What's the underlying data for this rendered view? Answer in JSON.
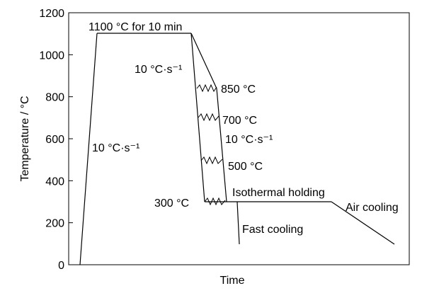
{
  "chart_data": {
    "type": "diagram",
    "xlabel": "Time",
    "ylabel": "Temperature / °C",
    "ylim": [
      0,
      1200
    ],
    "y_ticks": [
      "0",
      "200",
      "400",
      "600",
      "800",
      "1000",
      "1200"
    ],
    "profile": [
      {
        "time": 0.0,
        "temp": 0
      },
      {
        "time": 0.07,
        "temp": 1100
      },
      {
        "time": 0.46,
        "temp": 1100
      },
      {
        "time": 0.49,
        "temp": 850
      },
      {
        "time": 0.51,
        "temp": 700
      },
      {
        "time": 0.53,
        "temp": 500
      },
      {
        "time": 0.535,
        "temp": 300
      },
      {
        "time": 0.6,
        "temp": 300
      },
      {
        "time": 0.9,
        "temp": 300
      },
      {
        "time": 0.98,
        "temp": 100
      }
    ],
    "fast_cooling": [
      {
        "time": 0.605,
        "temp": 300
      },
      {
        "time": 0.61,
        "temp": 100
      }
    ],
    "annotations": {
      "hold": "1100 °C for 10 min",
      "heat_rate": "10 °C·s⁻¹",
      "cool_rate_1": "10 °C·s⁻¹",
      "cool_rate_2": "10 °C·s⁻¹",
      "t850": "850 °C",
      "t700": "700 °C",
      "t500": "500 °C",
      "t300": "300 °C",
      "isothermal": "Isothermal holding",
      "air": "Air cooling",
      "fast": "Fast cooling"
    }
  }
}
